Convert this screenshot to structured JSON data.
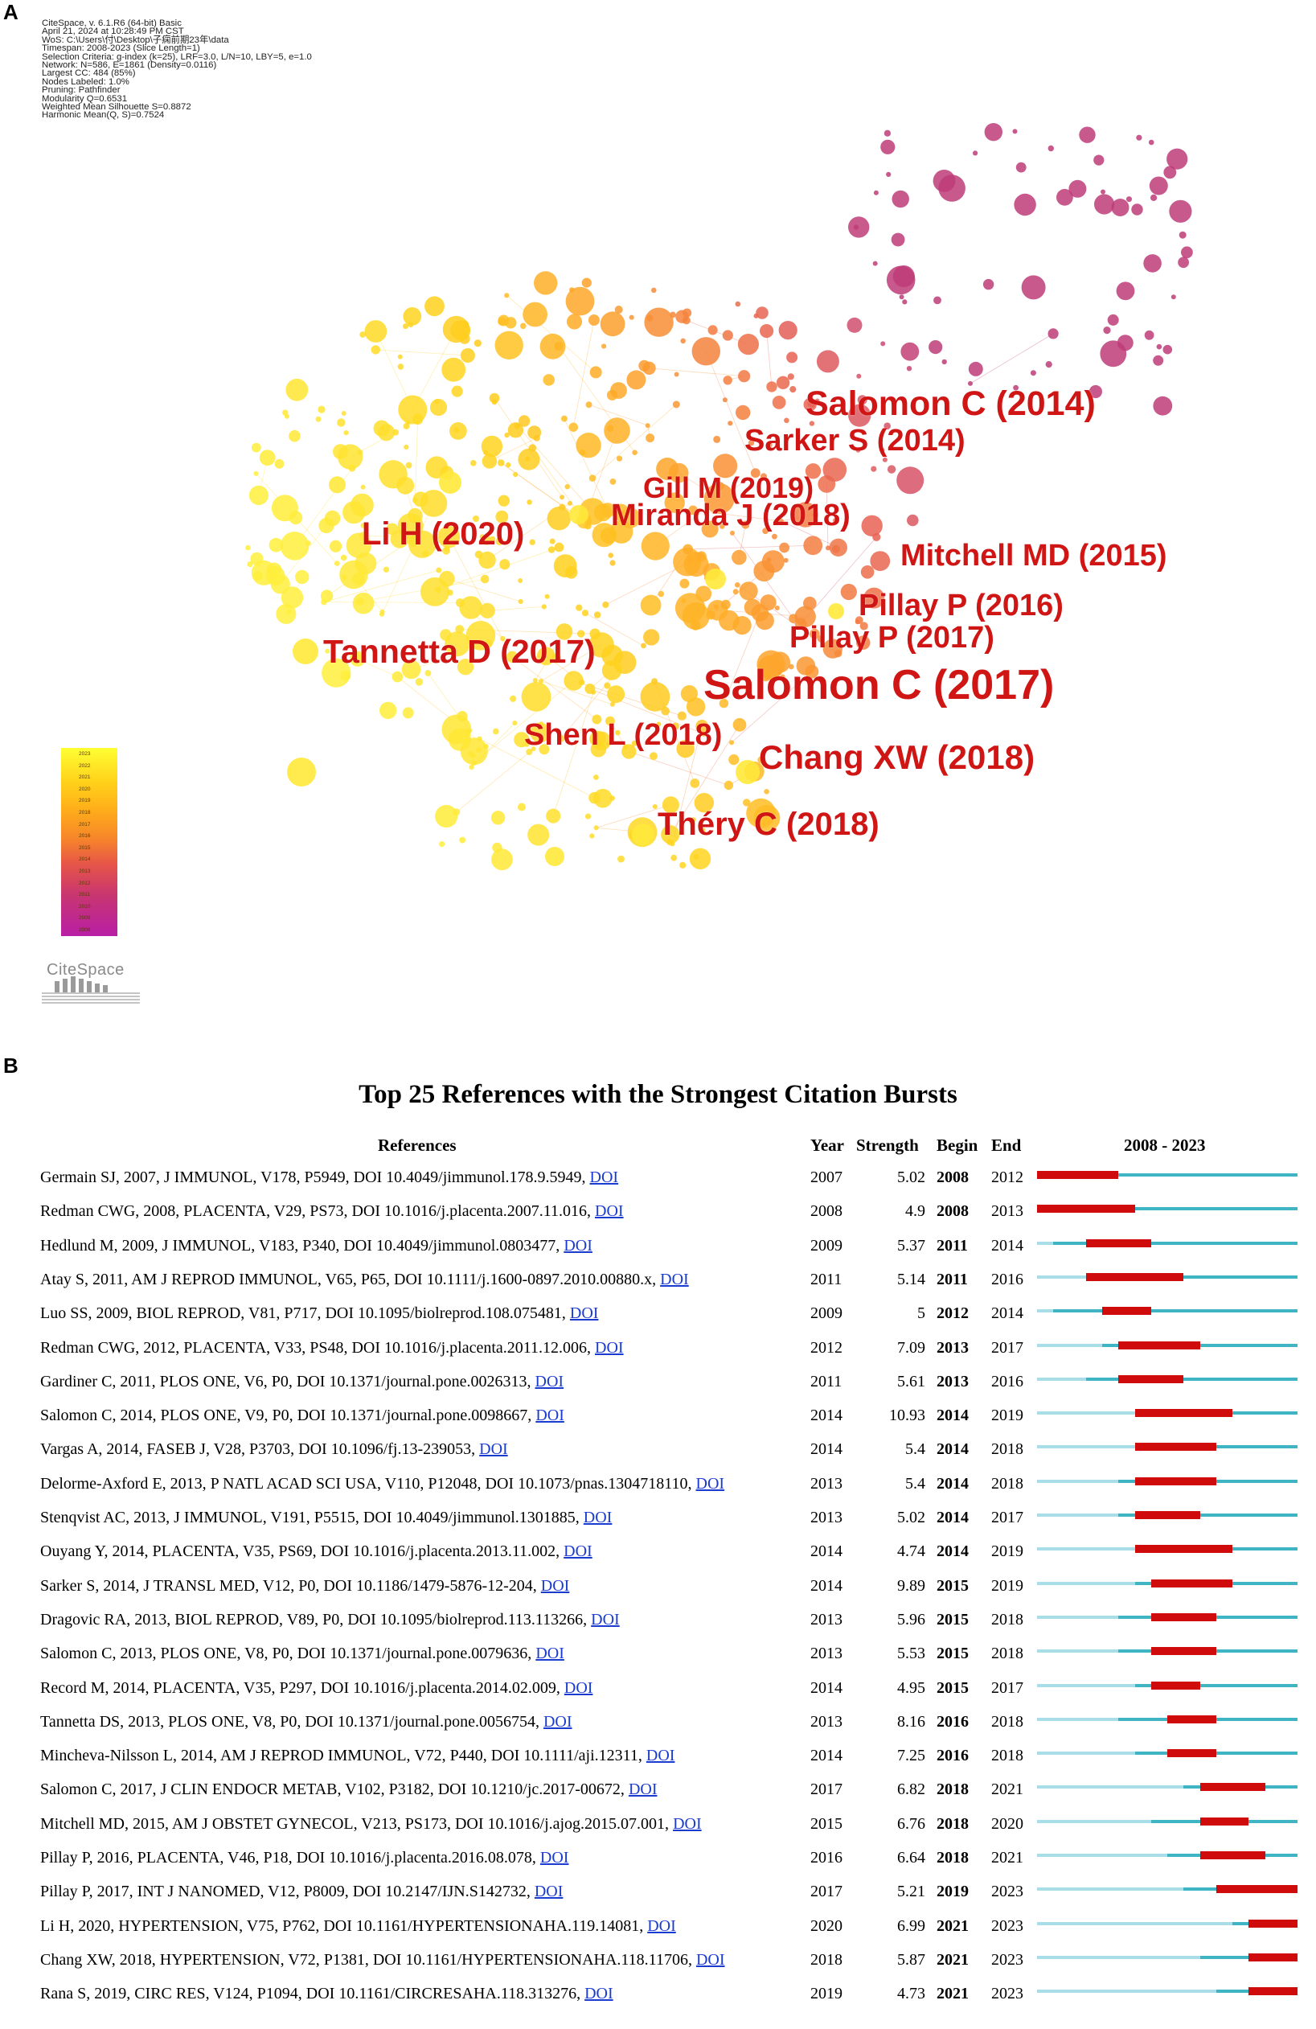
{
  "panel_a": {
    "label": "A",
    "info_lines": [
      "CiteSpace, v. 6.1.R6 (64-bit) Basic",
      "April 21, 2024 at 10:28:49 PM CST",
      "WoS: C:\\Users\\付\\Desktop\\子痫前期23年\\data",
      "Timespan: 2008-2023 (Slice Length=1)",
      "Selection Criteria: g-index (k=25), LRF=3.0, L/N=10, LBY=5, e=1.0",
      "Network: N=586, E=1861 (Density=0.0116)",
      "Largest CC: 484 (85%)",
      "Nodes Labeled: 1.0%",
      "Pruning: Pathfinder",
      "Modularity Q=0.6531",
      "Weighted Mean Silhouette S=0.8872",
      "Harmonic Mean(Q, S)=0.7524"
    ],
    "node_labels": [
      "Salomon C (2014)",
      "Sarker S (2014)",
      "Gill M (2019)",
      "Miranda J (2018)",
      "Li H (2020)",
      "Mitchell MD (2015)",
      "Pillay P (2016)",
      "Pillay P (2017)",
      "Tannetta D (2017)",
      "Salomon C (2017)",
      "Shen L (2018)",
      "Chang XW (2018)",
      "Théry C (2018)"
    ],
    "legend_years": [
      "2023",
      "2022",
      "2021",
      "2020",
      "2019",
      "2018",
      "2017",
      "2016",
      "2015",
      "2014",
      "2013",
      "2012",
      "2011",
      "2010",
      "2009",
      "2008"
    ],
    "logo_text": "CiteSpace"
  },
  "chart_data": {
    "type": "table",
    "panel_label": "B",
    "title": "Top 25 References with the Strongest Citation Bursts",
    "headers": {
      "references": "References",
      "year": "Year",
      "strength": "Strength",
      "begin": "Begin",
      "end": "End",
      "range": "2008 - 2023"
    },
    "range_start": 2008,
    "range_end": 2023,
    "rows": [
      {
        "ref": "Germain SJ, 2007, J IMMUNOL, V178, P5949, DOI 10.4049/jimmunol.178.9.5949, ",
        "doi": "DOI",
        "year": "2007",
        "strength": "5.02",
        "begin": "2008",
        "end": "2012"
      },
      {
        "ref": "Redman CWG, 2008, PLACENTA, V29, PS73, DOI 10.1016/j.placenta.2007.11.016, ",
        "doi": "DOI",
        "year": "2008",
        "strength": "4.9",
        "begin": "2008",
        "end": "2013"
      },
      {
        "ref": "Hedlund M, 2009, J IMMUNOL, V183, P340, DOI 10.4049/jimmunol.0803477, ",
        "doi": "DOI",
        "year": "2009",
        "strength": "5.37",
        "begin": "2011",
        "end": "2014"
      },
      {
        "ref": "Atay S, 2011, AM J REPROD IMMUNOL, V65, P65, DOI 10.1111/j.1600-0897.2010.00880.x, ",
        "doi": "DOI",
        "year": "2011",
        "strength": "5.14",
        "begin": "2011",
        "end": "2016"
      },
      {
        "ref": "Luo SS, 2009, BIOL REPROD, V81, P717, DOI 10.1095/biolreprod.108.075481, ",
        "doi": "DOI",
        "year": "2009",
        "strength": "5",
        "begin": "2012",
        "end": "2014"
      },
      {
        "ref": "Redman CWG, 2012, PLACENTA, V33, PS48, DOI 10.1016/j.placenta.2011.12.006, ",
        "doi": "DOI",
        "year": "2012",
        "strength": "7.09",
        "begin": "2013",
        "end": "2017"
      },
      {
        "ref": "Gardiner C, 2011, PLOS ONE, V6, P0, DOI 10.1371/journal.pone.0026313, ",
        "doi": "DOI",
        "year": "2011",
        "strength": "5.61",
        "begin": "2013",
        "end": "2016"
      },
      {
        "ref": "Salomon C, 2014, PLOS ONE, V9, P0, DOI 10.1371/journal.pone.0098667, ",
        "doi": "DOI",
        "year": "2014",
        "strength": "10.93",
        "begin": "2014",
        "end": "2019"
      },
      {
        "ref": "Vargas A, 2014, FASEB J, V28, P3703, DOI 10.1096/fj.13-239053, ",
        "doi": "DOI",
        "year": "2014",
        "strength": "5.4",
        "begin": "2014",
        "end": "2018"
      },
      {
        "ref": "Delorme-Axford E, 2013, P NATL ACAD SCI USA, V110, P12048, DOI 10.1073/pnas.1304718110, ",
        "doi": "DOI",
        "year": "2013",
        "strength": "5.4",
        "begin": "2014",
        "end": "2018"
      },
      {
        "ref": "Stenqvist AC, 2013, J IMMUNOL, V191, P5515, DOI 10.4049/jimmunol.1301885, ",
        "doi": "DOI",
        "year": "2013",
        "strength": "5.02",
        "begin": "2014",
        "end": "2017"
      },
      {
        "ref": "Ouyang Y, 2014, PLACENTA, V35, PS69, DOI 10.1016/j.placenta.2013.11.002, ",
        "doi": "DOI",
        "year": "2014",
        "strength": "4.74",
        "begin": "2014",
        "end": "2019"
      },
      {
        "ref": "Sarker S, 2014, J TRANSL MED, V12, P0, DOI 10.1186/1479-5876-12-204, ",
        "doi": "DOI",
        "year": "2014",
        "strength": "9.89",
        "begin": "2015",
        "end": "2019"
      },
      {
        "ref": "Dragovic RA, 2013, BIOL REPROD, V89, P0, DOI 10.1095/biolreprod.113.113266, ",
        "doi": "DOI",
        "year": "2013",
        "strength": "5.96",
        "begin": "2015",
        "end": "2018"
      },
      {
        "ref": "Salomon C, 2013, PLOS ONE, V8, P0, DOI 10.1371/journal.pone.0079636, ",
        "doi": "DOI",
        "year": "2013",
        "strength": "5.53",
        "begin": "2015",
        "end": "2018"
      },
      {
        "ref": "Record M, 2014, PLACENTA, V35, P297, DOI 10.1016/j.placenta.2014.02.009, ",
        "doi": "DOI",
        "year": "2014",
        "strength": "4.95",
        "begin": "2015",
        "end": "2017"
      },
      {
        "ref": "Tannetta DS, 2013, PLOS ONE, V8, P0, DOI 10.1371/journal.pone.0056754, ",
        "doi": "DOI",
        "year": "2013",
        "strength": "8.16",
        "begin": "2016",
        "end": "2018"
      },
      {
        "ref": "Mincheva-Nilsson L, 2014, AM J REPROD IMMUNOL, V72, P440, DOI 10.1111/aji.12311, ",
        "doi": "DOI",
        "year": "2014",
        "strength": "7.25",
        "begin": "2016",
        "end": "2018"
      },
      {
        "ref": "Salomon C, 2017, J CLIN ENDOCR METAB, V102, P3182, DOI 10.1210/jc.2017-00672, ",
        "doi": "DOI",
        "year": "2017",
        "strength": "6.82",
        "begin": "2018",
        "end": "2021"
      },
      {
        "ref": "Mitchell MD, 2015, AM J OBSTET GYNECOL, V213, PS173, DOI 10.1016/j.ajog.2015.07.001, ",
        "doi": "DOI",
        "year": "2015",
        "strength": "6.76",
        "begin": "2018",
        "end": "2020"
      },
      {
        "ref": "Pillay P, 2016, PLACENTA, V46, P18, DOI 10.1016/j.placenta.2016.08.078, ",
        "doi": "DOI",
        "year": "2016",
        "strength": "6.64",
        "begin": "2018",
        "end": "2021"
      },
      {
        "ref": "Pillay P, 2017, INT J NANOMED, V12, P8009, DOI 10.2147/IJN.S142732, ",
        "doi": "DOI",
        "year": "2017",
        "strength": "5.21",
        "begin": "2019",
        "end": "2023"
      },
      {
        "ref": "Li H, 2020, HYPERTENSION, V75, P762, DOI 10.1161/HYPERTENSIONAHA.119.14081, ",
        "doi": "DOI",
        "year": "2020",
        "strength": "6.99",
        "begin": "2021",
        "end": "2023"
      },
      {
        "ref": "Chang XW, 2018, HYPERTENSION, V72, P1381, DOI 10.1161/HYPERTENSIONAHA.118.11706, ",
        "doi": "DOI",
        "year": "2018",
        "strength": "5.87",
        "begin": "2021",
        "end": "2023"
      },
      {
        "ref": "Rana S, 2019, CIRC RES, V124, P1094, DOI 10.1161/CIRCRESAHA.118.313276, ",
        "doi": "DOI",
        "year": "2019",
        "strength": "4.73",
        "begin": "2021",
        "end": "2023"
      }
    ]
  }
}
